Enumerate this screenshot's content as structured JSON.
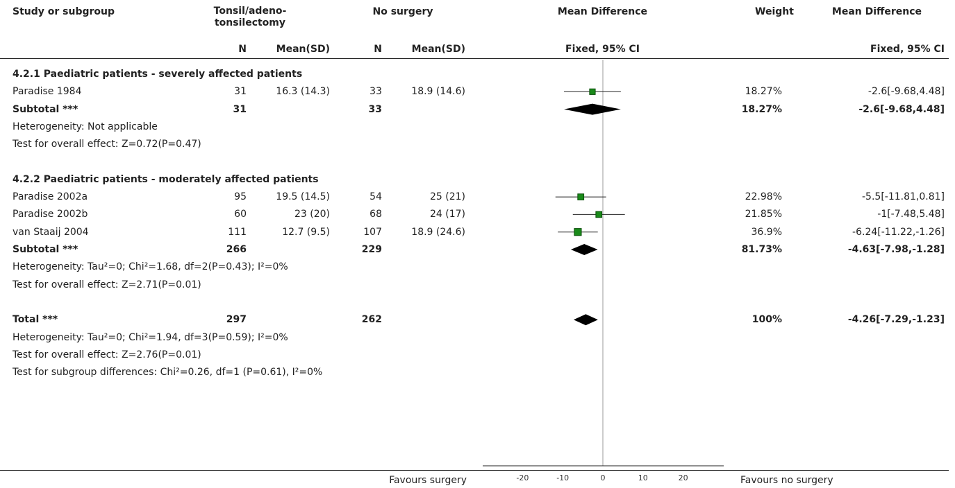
{
  "headers": {
    "study": "Study or subgroup",
    "group1": "Tonsil/adeno-\ntonsilectomy",
    "group2": "No surgery",
    "effect": "Mean Difference",
    "weight": "Weight",
    "effect2": "Mean Difference",
    "n1": "N",
    "mean1": "Mean(SD)",
    "n2": "N",
    "mean2": "Mean(SD)",
    "method": "Fixed, 95% CI",
    "method2": "Fixed, 95% CI"
  },
  "rows": [
    {
      "kind": "heading",
      "label": "4.2.1 Paediatric patients - severely affected patients"
    },
    {
      "kind": "study",
      "label": "Paradise 1984",
      "n1": "31",
      "m1": "16.3 (14.3)",
      "n2": "33",
      "m2": "18.9 (14.6)",
      "weight": "18.27%",
      "ci": "-2.6[-9.68,4.48]"
    },
    {
      "kind": "subtotal",
      "label": "Subtotal ***",
      "n1": "31",
      "n2": "33",
      "weight": "18.27%",
      "ci": "-2.6[-9.68,4.48]"
    },
    {
      "kind": "note",
      "label": "Heterogeneity: Not applicable"
    },
    {
      "kind": "note",
      "label": "Test for overall effect: Z=0.72(P=0.47)"
    },
    {
      "kind": "blank"
    },
    {
      "kind": "heading",
      "label": "4.2.2 Paediatric patients - moderately affected patients"
    },
    {
      "kind": "study",
      "label": "Paradise 2002a",
      "n1": "95",
      "m1": "19.5 (14.5)",
      "n2": "54",
      "m2": "25 (21)",
      "weight": "22.98%",
      "ci": "-5.5[-11.81,0.81]"
    },
    {
      "kind": "study",
      "label": "Paradise 2002b",
      "n1": "60",
      "m1": "23 (20)",
      "n2": "68",
      "m2": "24 (17)",
      "weight": "21.85%",
      "ci": "-1[-7.48,5.48]"
    },
    {
      "kind": "study",
      "label": "van Staaij 2004",
      "n1": "111",
      "m1": "12.7 (9.5)",
      "n2": "107",
      "m2": "18.9 (24.6)",
      "weight": "36.9%",
      "ci": "-6.24[-11.22,-1.26]"
    },
    {
      "kind": "subtotal",
      "label": "Subtotal ***",
      "n1": "266",
      "n2": "229",
      "weight": "81.73%",
      "ci": "-4.63[-7.98,-1.28]"
    },
    {
      "kind": "note",
      "label": "Heterogeneity: Tau²=0; Chi²=1.68, df=2(P=0.43); I²=0%"
    },
    {
      "kind": "note",
      "label": "Test for overall effect: Z=2.71(P=0.01)"
    },
    {
      "kind": "blank"
    },
    {
      "kind": "subtotal",
      "label": "Total ***",
      "n1": "297",
      "n2": "262",
      "weight": "100%",
      "ci": "-4.26[-7.29,-1.23]"
    },
    {
      "kind": "note",
      "label": "Heterogeneity: Tau²=0; Chi²=1.94, df=3(P=0.59); I²=0%"
    },
    {
      "kind": "note",
      "label": "Test for overall effect: Z=2.76(P=0.01)"
    },
    {
      "kind": "note",
      "label": "Test for subgroup differences: Chi²=0.26, df=1 (P=0.61), I²=0%"
    }
  ],
  "footer": {
    "favours_left": "Favours surgery",
    "favours_right": "Favours no surgery"
  },
  "colors": {
    "square": "#1a8a1a",
    "square_edge": "#0b4f0b",
    "diamond": "#000000",
    "line": "#222222",
    "zero_line": "#999999"
  },
  "chart_data": {
    "type": "forest",
    "xlim": [
      -20,
      20
    ],
    "xticks": [
      -20,
      -10,
      0,
      10,
      20
    ],
    "studies": [
      {
        "name": "Paradise 1984",
        "estimate": -2.6,
        "ci": [
          -9.68,
          4.48
        ],
        "weight": 18.27
      },
      {
        "name": "Paradise 2002a",
        "estimate": -5.5,
        "ci": [
          -11.81,
          0.81
        ],
        "weight": 22.98
      },
      {
        "name": "Paradise 2002b",
        "estimate": -1,
        "ci": [
          -7.48,
          5.48
        ],
        "weight": 21.85
      },
      {
        "name": "van Staaij 2004",
        "estimate": -6.24,
        "ci": [
          -11.22,
          -1.26
        ],
        "weight": 36.9
      }
    ],
    "summaries": [
      {
        "name": "Subtotal (4.2.1)",
        "estimate": -2.6,
        "ci": [
          -9.68,
          4.48
        ]
      },
      {
        "name": "Subtotal (4.2.2)",
        "estimate": -4.63,
        "ci": [
          -7.98,
          -1.28
        ]
      },
      {
        "name": "Total",
        "estimate": -4.26,
        "ci": [
          -7.29,
          -1.23
        ]
      }
    ]
  }
}
